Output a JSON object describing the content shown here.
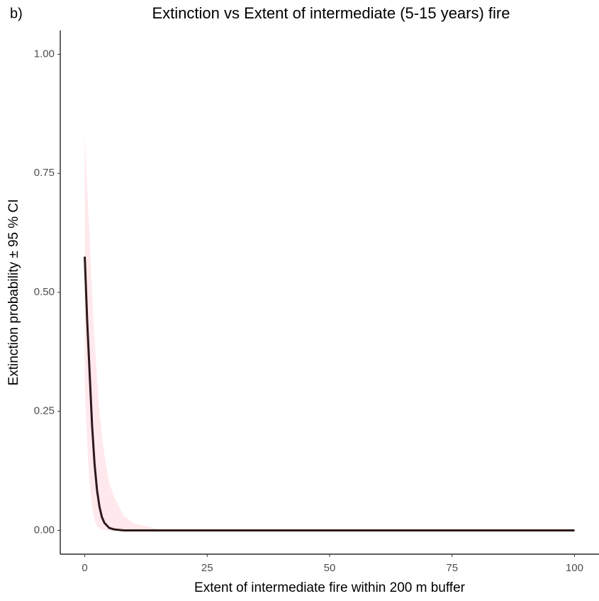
{
  "chart_data": {
    "type": "line",
    "panel_label": "b)",
    "title": "Extinction vs Extent of intermediate (5-15 years) fire",
    "x_label": "Extent of intermediate fire within 200 m buffer",
    "y_label": "Extinction probability ± 95 % CI",
    "x": [
      0,
      0.5,
      1,
      1.5,
      2,
      2.5,
      3,
      3.5,
      4,
      5,
      6,
      8,
      10,
      15,
      20,
      25,
      50,
      75,
      100
    ],
    "values": [
      0.575,
      0.44,
      0.33,
      0.22,
      0.14,
      0.085,
      0.05,
      0.028,
      0.016,
      0.005,
      0.002,
      0,
      0,
      0,
      0,
      0,
      0,
      0,
      0
    ],
    "ci_upper": [
      0.83,
      0.72,
      0.62,
      0.5,
      0.4,
      0.32,
      0.25,
      0.2,
      0.16,
      0.1,
      0.07,
      0.03,
      0.015,
      0.003,
      0.001,
      0,
      0,
      0,
      0
    ],
    "ci_lower": [
      0.3,
      0.18,
      0.1,
      0.05,
      0.02,
      0.009,
      0.004,
      0.002,
      0.001,
      0,
      0,
      0,
      0,
      0,
      0,
      0,
      0,
      0,
      0
    ],
    "color": "#2e1a1a",
    "band_color": "#ffc0cb",
    "xlim": [
      -5,
      105
    ],
    "ylim": [
      -0.05,
      1.05
    ],
    "xticks": [
      0,
      25,
      50,
      75,
      100
    ],
    "yticks": [
      {
        "value": 0,
        "label": "0.00"
      },
      {
        "value": 0.25,
        "label": "0.25"
      },
      {
        "value": 0.5,
        "label": "0.50"
      },
      {
        "value": 0.75,
        "label": "0.75"
      },
      {
        "value": 1,
        "label": "1.00"
      }
    ],
    "grid": false
  }
}
